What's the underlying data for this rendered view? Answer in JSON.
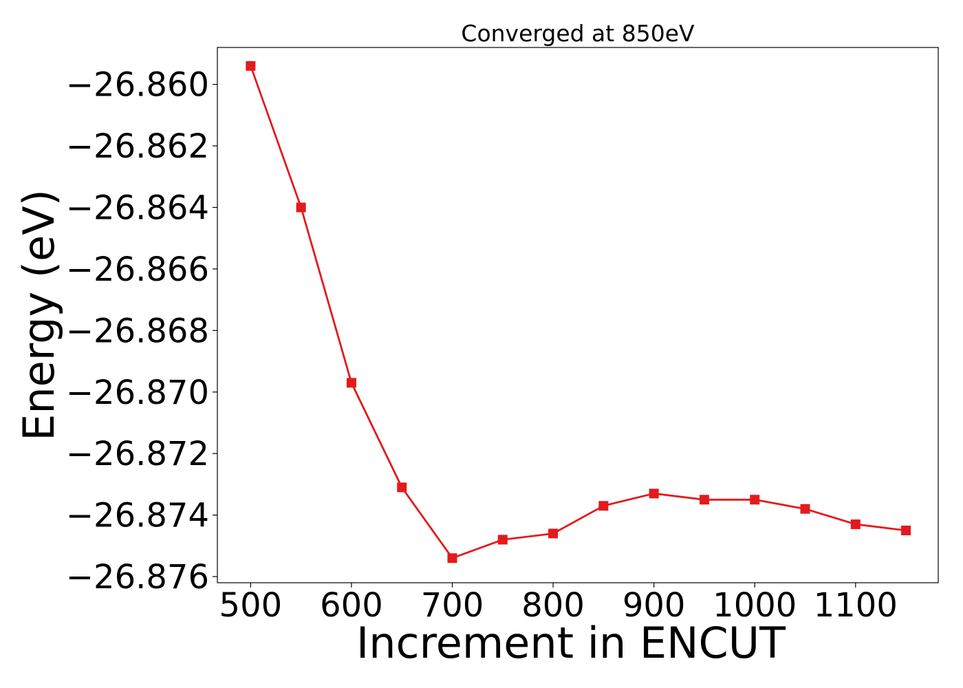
{
  "chart_data": {
    "type": "line",
    "title": "Converged at 850eV",
    "xlabel": "Increment in ENCUT",
    "ylabel": "Energy (eV)",
    "xlim": [
      467,
      1182
    ],
    "ylim": [
      -26.8762,
      -26.8588
    ],
    "xticks": [
      500,
      600,
      700,
      800,
      900,
      1000,
      1100
    ],
    "yticks": [
      -26.86,
      -26.862,
      -26.864,
      -26.866,
      -26.868,
      -26.87,
      -26.872,
      -26.874,
      -26.876
    ],
    "ytick_labels": [
      "−26.860",
      "−26.862",
      "−26.864",
      "−26.866",
      "−26.868",
      "−26.870",
      "−26.872",
      "−26.874",
      "−26.876"
    ],
    "grid": false,
    "series": [
      {
        "color": "#e41a1c",
        "marker": "square",
        "x": [
          500,
          550,
          600,
          650,
          700,
          750,
          800,
          850,
          900,
          950,
          1000,
          1050,
          1100,
          1150
        ],
        "y": [
          -26.8594,
          -26.864,
          -26.8697,
          -26.8731,
          -26.8754,
          -26.8748,
          -26.8746,
          -26.8737,
          -26.8733,
          -26.8735,
          -26.8735,
          -26.8738,
          -26.8743,
          -26.8745
        ]
      }
    ]
  }
}
